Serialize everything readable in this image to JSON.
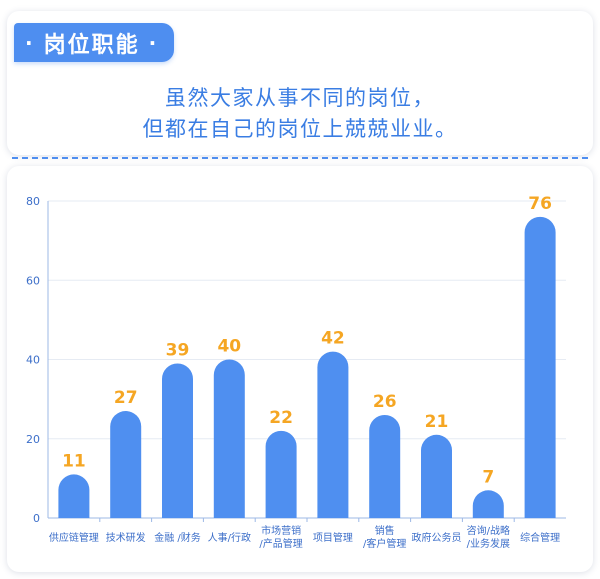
{
  "header": {
    "badge_label": "岗位职能",
    "subtitle_lines": [
      "虽然大家从事不同的岗位，",
      "但都在自己的岗位上兢兢业业。"
    ]
  },
  "colors": {
    "accent": "#4e8ef0",
    "bar": "#4f8ff0",
    "value_label": "#f5a623",
    "axis_text": "#3d6fc9"
  },
  "chart_data": {
    "type": "bar",
    "title": "",
    "xlabel": "",
    "ylabel": "",
    "ylim": [
      0,
      80
    ],
    "yticks": [
      0,
      20,
      40,
      60,
      80
    ],
    "grid": true,
    "categories": [
      [
        "供应链管理"
      ],
      [
        "技术研发"
      ],
      [
        "金融 /财务"
      ],
      [
        "人事/行政"
      ],
      [
        "市场营销",
        "/产品管理"
      ],
      [
        "项目管理"
      ],
      [
        "销售",
        "/客户管理"
      ],
      [
        "政府公务员"
      ],
      [
        "咨询/战略",
        "/业务发展"
      ],
      [
        "综合管理"
      ]
    ],
    "values": [
      11,
      27,
      39,
      40,
      22,
      42,
      26,
      21,
      7,
      76
    ]
  }
}
